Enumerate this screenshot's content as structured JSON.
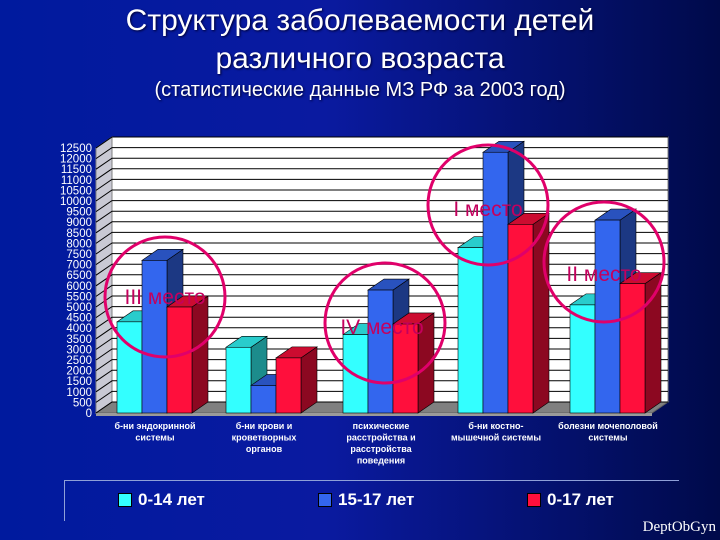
{
  "header": {
    "title_line1": "Структура заболеваемости детей",
    "title_line2": "различного возраста",
    "subtitle": "(статистические данные МЗ РФ за 2003 год)"
  },
  "chart_data": {
    "type": "bar",
    "categories": [
      [
        "б-ни эндокринной",
        "системы"
      ],
      [
        "б-ни крови и",
        "кроветворных",
        "органов"
      ],
      [
        "психические",
        "расстройства и",
        "расстройства",
        "поведения"
      ],
      [
        "б-ни костно-",
        "мышечной системы"
      ],
      [
        "болезни мочеполовой",
        "системы"
      ]
    ],
    "series": [
      {
        "name": "0-14 лет",
        "color": "#33ffff",
        "values": [
          4300,
          3100,
          3700,
          7800,
          5100
        ]
      },
      {
        "name": "15-17 лет",
        "color": "#3366ee",
        "values": [
          7200,
          1300,
          5800,
          12300,
          9100
        ]
      },
      {
        "name": "0-17 лет",
        "color": "#ff0f3c",
        "values": [
          5000,
          2600,
          4200,
          8900,
          6100
        ]
      }
    ],
    "ylim": [
      0,
      12500
    ],
    "ytick_step": 500,
    "grid": true,
    "legend_position": "bottom",
    "annotations": [
      {
        "text": "I место",
        "category": 3
      },
      {
        "text": "II место",
        "category": 4
      },
      {
        "text": "III место",
        "category": 0
      },
      {
        "text": "IV место",
        "category": 2
      }
    ]
  },
  "watermark": "DeptObGyn"
}
